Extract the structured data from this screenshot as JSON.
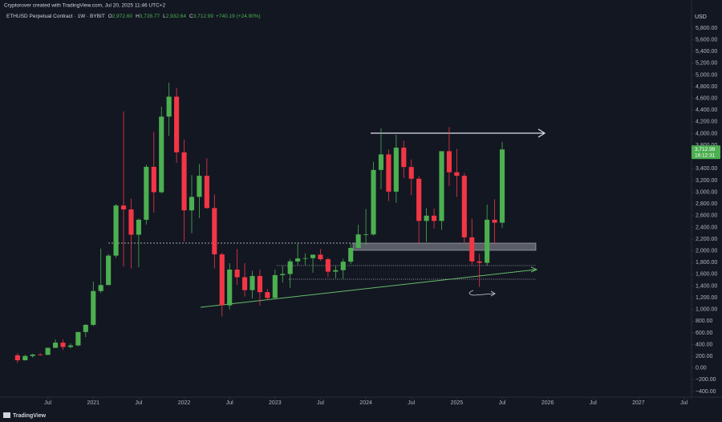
{
  "header": "Cryptorover created with TradingView.com, Jul 20, 2025 11:46 UTC+2",
  "footer_brand": "TradingView",
  "chart_data": {
    "type": "candlestick",
    "legend": {
      "symbol": "ETHUSD Perpetual Contract · 1W · BYBIT",
      "fields": [
        {
          "key": "O",
          "text": "2,972.60"
        },
        {
          "key": "H",
          "text": "3,728.77"
        },
        {
          "key": "L",
          "text": "2,932.64"
        },
        {
          "key": "C",
          "text": "3,712.99"
        }
      ],
      "change": "+740.19 (+24.90%)"
    },
    "currency": "USD",
    "last_price_label": "3,712.99",
    "countdown": "16:12:31",
    "up_color": "#4caf50",
    "down_color": "#f23645",
    "grid": false,
    "x": [
      "2020-03",
      "2020-04",
      "2020-05",
      "2020-06",
      "2020-07",
      "2020-08",
      "2020-09",
      "2020-10",
      "2020-11",
      "2020-12",
      "2021-01",
      "2021-02",
      "2021-03",
      "2021-04",
      "2021-05",
      "2021-06",
      "2021-07",
      "2021-08",
      "2021-09",
      "2021-10",
      "2021-11",
      "2021-12",
      "2022-01",
      "2022-02",
      "2022-03",
      "2022-04",
      "2022-05",
      "2022-06",
      "2022-07",
      "2022-08",
      "2022-09",
      "2022-10",
      "2022-11",
      "2022-12",
      "2023-01",
      "2023-02",
      "2023-03",
      "2023-04",
      "2023-05",
      "2023-06",
      "2023-07",
      "2023-08",
      "2023-09",
      "2023-10",
      "2023-11",
      "2023-12",
      "2024-01",
      "2024-02",
      "2024-03",
      "2024-04",
      "2024-05",
      "2024-06",
      "2024-07",
      "2024-08",
      "2024-09",
      "2024-10",
      "2024-11",
      "2024-12",
      "2025-01",
      "2025-02",
      "2025-03",
      "2025-04",
      "2025-05",
      "2025-06",
      "2025-07"
    ],
    "open": [
      218,
      133,
      206,
      231,
      225,
      345,
      434,
      360,
      386,
      615,
      737,
      1314,
      1416,
      1918,
      2773,
      2706,
      2275,
      2530,
      3433,
      3000,
      4290,
      4630,
      3680,
      2690,
      2920,
      3280,
      2730,
      1940,
      1070,
      1680,
      1550,
      1330,
      1570,
      1295,
      1196,
      1585,
      1605,
      1820,
      1870,
      1875,
      1935,
      1857,
      1645,
      1670,
      1815,
      2050,
      2280,
      2280,
      3380,
      3645,
      3010,
      3760,
      3430,
      3230,
      2510,
      2600,
      2510,
      3700,
      3340,
      3280,
      2230,
      1820,
      1795,
      2530,
      2480
    ],
    "high": [
      253,
      228,
      245,
      254,
      348,
      490,
      488,
      420,
      620,
      750,
      1475,
      2040,
      1945,
      2800,
      4380,
      2890,
      2550,
      3470,
      4030,
      4460,
      4870,
      4780,
      3900,
      3290,
      3480,
      3580,
      2960,
      1970,
      1790,
      2030,
      1790,
      1660,
      1680,
      1350,
      1680,
      1740,
      1860,
      2140,
      1960,
      1930,
      2030,
      1880,
      1750,
      1865,
      2130,
      2445,
      2715,
      3520,
      4090,
      3730,
      3980,
      3880,
      3560,
      3270,
      2730,
      2720,
      3680,
      4110,
      3740,
      3330,
      2550,
      1950,
      2790,
      2880,
      3860
    ],
    "low": [
      90,
      130,
      178,
      214,
      222,
      340,
      308,
      335,
      373,
      530,
      715,
      1280,
      1440,
      1880,
      1730,
      1700,
      1720,
      2450,
      2650,
      2980,
      3960,
      3500,
      2160,
      2300,
      2560,
      2720,
      1700,
      880,
      1000,
      1420,
      1220,
      1190,
      1070,
      1160,
      1190,
      1460,
      1370,
      1760,
      1760,
      1625,
      1830,
      1550,
      1530,
      1520,
      1775,
      2040,
      2100,
      2260,
      3050,
      2850,
      2820,
      3240,
      2950,
      2110,
      2150,
      2380,
      2360,
      3100,
      2920,
      2120,
      1760,
      1385,
      1750,
      2110,
      2390
    ],
    "close": [
      133,
      206,
      231,
      225,
      345,
      434,
      360,
      386,
      615,
      737,
      1314,
      1416,
      1918,
      2773,
      2706,
      2275,
      2530,
      3433,
      3000,
      4290,
      4630,
      3680,
      2690,
      2920,
      3280,
      2730,
      1940,
      1070,
      1680,
      1550,
      1330,
      1570,
      1295,
      1196,
      1585,
      1605,
      1820,
      1870,
      1875,
      1935,
      1857,
      1645,
      1670,
      1815,
      2050,
      2280,
      2280,
      3380,
      3645,
      3010,
      3760,
      3430,
      3230,
      2510,
      2600,
      2510,
      3700,
      3340,
      3280,
      2230,
      1820,
      1795,
      2530,
      2480,
      3730
    ],
    "xlim": [
      "2020-01",
      "2027-08"
    ],
    "xticks": [
      {
        "value": "2020-07",
        "label": "Jul"
      },
      {
        "value": "2021-01",
        "label": "2021"
      },
      {
        "value": "2021-07",
        "label": "Jul"
      },
      {
        "value": "2022-01",
        "label": "2022"
      },
      {
        "value": "2022-07",
        "label": "Jul"
      },
      {
        "value": "2023-01",
        "label": "2023"
      },
      {
        "value": "2023-07",
        "label": "Jul"
      },
      {
        "value": "2024-01",
        "label": "2024"
      },
      {
        "value": "2024-07",
        "label": "Jul"
      },
      {
        "value": "2025-01",
        "label": "2025"
      },
      {
        "value": "2025-07",
        "label": "Jul"
      },
      {
        "value": "2026-01",
        "label": "2026"
      },
      {
        "value": "2026-07",
        "label": "Jul"
      },
      {
        "value": "2027-01",
        "label": "2027"
      },
      {
        "value": "2027-07",
        "label": "Jul"
      }
    ],
    "ylim": [
      -400,
      5800
    ],
    "yticks": [
      {
        "value": 5800,
        "label": "5,800.00"
      },
      {
        "value": 5600,
        "label": "5,600.00"
      },
      {
        "value": 5400,
        "label": "5,400.00"
      },
      {
        "value": 5200,
        "label": "5,200.00"
      },
      {
        "value": 5000,
        "label": "5,000.00"
      },
      {
        "value": 4800,
        "label": "4,800.00"
      },
      {
        "value": 4600,
        "label": "4,600.00"
      },
      {
        "value": 4400,
        "label": "4,400.00"
      },
      {
        "value": 4200,
        "label": "4,200.00"
      },
      {
        "value": 4000,
        "label": "4,000.00"
      },
      {
        "value": 3800,
        "label": "3,800.00"
      },
      {
        "value": 3400,
        "label": "3,400.00"
      },
      {
        "value": 3200,
        "label": "3,200.00"
      },
      {
        "value": 3000,
        "label": "3,000.00"
      },
      {
        "value": 2800,
        "label": "2,800.00"
      },
      {
        "value": 2600,
        "label": "2,600.00"
      },
      {
        "value": 2400,
        "label": "2,400.00"
      },
      {
        "value": 2200,
        "label": "2,200.00"
      },
      {
        "value": 2000,
        "label": "2,000.00"
      },
      {
        "value": 1800,
        "label": "1,800.00"
      },
      {
        "value": 1600,
        "label": "1,600.00"
      },
      {
        "value": 1400,
        "label": "1,400.00"
      },
      {
        "value": 1200,
        "label": "1,200.00"
      },
      {
        "value": 1000,
        "label": "1,000.00"
      },
      {
        "value": 800,
        "label": "800.00"
      },
      {
        "value": 600,
        "label": "600.00"
      },
      {
        "value": 400,
        "label": "400.00"
      },
      {
        "value": 200,
        "label": "200.00"
      },
      {
        "value": 0,
        "label": "0.00"
      },
      {
        "value": -200,
        "label": "−200.00"
      },
      {
        "value": -400,
        "label": "−400.00"
      }
    ]
  }
}
